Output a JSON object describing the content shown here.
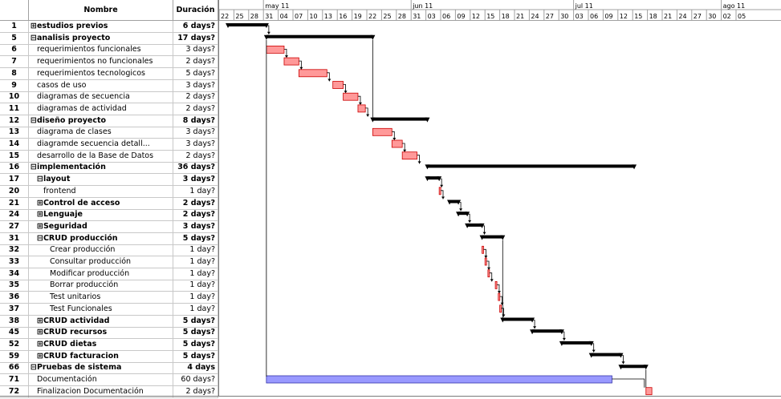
{
  "columns": {
    "id": "",
    "name": "Nombre",
    "duration": "Duración"
  },
  "timeline": {
    "months": [
      "may 11",
      "jun 11",
      "jul 11",
      "ago 11"
    ],
    "days": [
      "22",
      "25",
      "28",
      "31",
      "04",
      "07",
      "10",
      "13",
      "16",
      "19",
      "22",
      "25",
      "28",
      "31",
      "03",
      "06",
      "09",
      "12",
      "15",
      "18",
      "21",
      "24",
      "27",
      "30",
      "03",
      "06",
      "09",
      "12",
      "15",
      "18",
      "21",
      "24",
      "27",
      "30",
      "02",
      "05"
    ]
  },
  "tasks": [
    {
      "id": "1",
      "name": "⊞estudios previos",
      "duration": "6 days?",
      "bold": true,
      "indent": 0,
      "type": "summary",
      "start": 0.6,
      "end": 3.2
    },
    {
      "id": "5",
      "name": "⊟analisis proyecto",
      "duration": "17 days?",
      "bold": true,
      "indent": 0,
      "type": "summary",
      "start": 3.2,
      "end": 10.4
    },
    {
      "id": "6",
      "name": "requerimientos funcionales",
      "duration": "3 days?",
      "bold": false,
      "indent": 1,
      "type": "task",
      "start": 3.2,
      "end": 4.4
    },
    {
      "id": "7",
      "name": "requerimientos no funcionales",
      "duration": "2 days?",
      "bold": false,
      "indent": 1,
      "type": "task",
      "start": 4.4,
      "end": 5.4
    },
    {
      "id": "8",
      "name": "requerimientos tecnologicos",
      "duration": "5 days?",
      "bold": false,
      "indent": 1,
      "type": "task",
      "start": 5.4,
      "end": 7.3
    },
    {
      "id": "9",
      "name": "casos de uso",
      "duration": "3 days?",
      "bold": false,
      "indent": 1,
      "type": "task",
      "start": 7.7,
      "end": 8.4
    },
    {
      "id": "10",
      "name": "diagramas de secuencia",
      "duration": "2 days?",
      "bold": false,
      "indent": 1,
      "type": "task",
      "start": 8.4,
      "end": 9.4
    },
    {
      "id": "11",
      "name": "diagramas de actividad",
      "duration": "2 days?",
      "bold": false,
      "indent": 1,
      "type": "task",
      "start": 9.4,
      "end": 9.9
    },
    {
      "id": "12",
      "name": "⊟diseño proyecto",
      "duration": "8 days?",
      "bold": true,
      "indent": 0,
      "type": "summary",
      "start": 10.4,
      "end": 14.1
    },
    {
      "id": "13",
      "name": "diagrama de clases",
      "duration": "3 days?",
      "bold": false,
      "indent": 1,
      "type": "task",
      "start": 10.4,
      "end": 11.7
    },
    {
      "id": "14",
      "name": "diagramde secuencia detall...",
      "duration": "3 days?",
      "bold": false,
      "indent": 1,
      "type": "task",
      "start": 11.7,
      "end": 12.4
    },
    {
      "id": "15",
      "name": "desarrollo de la Base de Datos",
      "duration": "2 days?",
      "bold": false,
      "indent": 1,
      "type": "task",
      "start": 12.4,
      "end": 13.4
    },
    {
      "id": "16",
      "name": "⊟implementación",
      "duration": "36 days?",
      "bold": true,
      "indent": 0,
      "type": "summary",
      "start": 14.1,
      "end": 28.1
    },
    {
      "id": "17",
      "name": "⊟layout",
      "duration": "3 days?",
      "bold": true,
      "indent": 1,
      "type": "summary",
      "start": 14.1,
      "end": 14.9
    },
    {
      "id": "20",
      "name": "frontend",
      "duration": "1 day?",
      "bold": false,
      "indent": 2,
      "type": "task",
      "start": 14.9,
      "end": 15.0
    },
    {
      "id": "21",
      "name": "⊞Control de acceso",
      "duration": "2 days?",
      "bold": true,
      "indent": 1,
      "type": "summary",
      "start": 15.6,
      "end": 16.2
    },
    {
      "id": "24",
      "name": "⊞Lenguaje",
      "duration": "2 days?",
      "bold": true,
      "indent": 1,
      "type": "summary",
      "start": 16.2,
      "end": 16.8
    },
    {
      "id": "27",
      "name": "⊞Seguridad",
      "duration": "3 days?",
      "bold": true,
      "indent": 1,
      "type": "summary",
      "start": 16.8,
      "end": 17.8
    },
    {
      "id": "31",
      "name": "⊟CRUD producción",
      "duration": "5 days?",
      "bold": true,
      "indent": 1,
      "type": "summary",
      "start": 17.8,
      "end": 19.2
    },
    {
      "id": "32",
      "name": "Crear producción",
      "duration": "1 day?",
      "bold": false,
      "indent": 3,
      "type": "task",
      "start": 17.8,
      "end": 17.9
    },
    {
      "id": "33",
      "name": "Consultar producción",
      "duration": "1 day?",
      "bold": false,
      "indent": 3,
      "type": "task",
      "start": 18.0,
      "end": 18.1
    },
    {
      "id": "34",
      "name": "Modificar producción",
      "duration": "1 day?",
      "bold": false,
      "indent": 3,
      "type": "task",
      "start": 18.2,
      "end": 18.3
    },
    {
      "id": "35",
      "name": "Borrar producción",
      "duration": "1 day?",
      "bold": false,
      "indent": 3,
      "type": "task",
      "start": 18.7,
      "end": 18.8
    },
    {
      "id": "36",
      "name": "Test unitarios",
      "duration": "1 day?",
      "bold": false,
      "indent": 3,
      "type": "task",
      "start": 18.9,
      "end": 19.0
    },
    {
      "id": "37",
      "name": "Test Funcionales",
      "duration": "1 day?",
      "bold": false,
      "indent": 3,
      "type": "task",
      "start": 19.0,
      "end": 19.1
    },
    {
      "id": "38",
      "name": "⊞CRUD actividad",
      "duration": "5 days?",
      "bold": true,
      "indent": 1,
      "type": "summary",
      "start": 19.2,
      "end": 21.2
    },
    {
      "id": "45",
      "name": "⊞CRUD recursos",
      "duration": "5 days?",
      "bold": true,
      "indent": 1,
      "type": "summary",
      "start": 21.2,
      "end": 23.2
    },
    {
      "id": "52",
      "name": "⊞CRUD  dietas",
      "duration": "5 days?",
      "bold": true,
      "indent": 1,
      "type": "summary",
      "start": 23.2,
      "end": 25.2
    },
    {
      "id": "59",
      "name": "⊞CRUD  facturacion",
      "duration": "5 days?",
      "bold": true,
      "indent": 1,
      "type": "summary",
      "start": 25.2,
      "end": 27.2
    },
    {
      "id": "66",
      "name": "⊟Pruebas de sistema",
      "duration": "4 days",
      "bold": true,
      "indent": 0,
      "type": "summary",
      "start": 27.2,
      "end": 28.9
    },
    {
      "id": "71",
      "name": "Documentación",
      "duration": "60 days?",
      "bold": false,
      "indent": 1,
      "type": "doc",
      "start": 3.2,
      "end": 26.6
    },
    {
      "id": "72",
      "name": "Finalizacion Documentación",
      "duration": "2 days?",
      "bold": false,
      "indent": 1,
      "type": "task",
      "start": 28.9,
      "end": 29.3
    }
  ],
  "colors": {
    "summary": "#000000",
    "task_fill": "#ff9999",
    "task_border": "#cc0000",
    "doc_fill": "#9999ff",
    "doc_border": "#3333aa"
  }
}
